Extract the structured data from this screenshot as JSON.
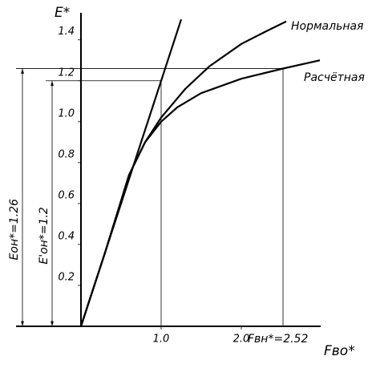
{
  "chart_data": {
    "type": "line",
    "y_label": "E*",
    "x_label": "Fво*",
    "xlim": [
      0,
      2.98
    ],
    "ylim": [
      0,
      1.54
    ],
    "xticks": [
      {
        "value": 1,
        "label": "1.0"
      },
      {
        "value": 2,
        "label": "2.0"
      }
    ],
    "yticks": [
      0.2,
      0.4,
      0.6,
      0.8,
      {
        "value": 1,
        "label": "1.0"
      },
      1.2,
      1.4
    ],
    "color": "#000000",
    "series": [
      {
        "name": "Нормальная",
        "x": [
          0,
          0.3,
          0.6,
          0.8,
          1.0,
          1.3,
          1.6,
          2.0,
          2.3,
          2.56
        ],
        "values": [
          0,
          0.36,
          0.74,
          0.9,
          1.02,
          1.16,
          1.27,
          1.38,
          1.44,
          1.49
        ]
      },
      {
        "name": "Расчётная",
        "x": [
          0,
          0.3,
          0.6,
          0.8,
          1.0,
          1.2,
          1.5,
          2.0,
          2.52,
          2.98
        ],
        "values": [
          0,
          0.36,
          0.74,
          0.9,
          1.0,
          1.07,
          1.14,
          1.21,
          1.26,
          1.3
        ]
      }
    ],
    "line": {
      "x": [
        0,
        1.0,
        1.25
      ],
      "values": [
        0,
        1.2,
        1.5
      ]
    },
    "markers": [
      {
        "x": 2.52,
        "y": 1.26,
        "y_label": "Eон*=1.26",
        "x_label": "Fвн*=2.52"
      },
      {
        "x": 1.0,
        "y": 1.2,
        "y_label": "E'он*=1.2"
      }
    ]
  }
}
